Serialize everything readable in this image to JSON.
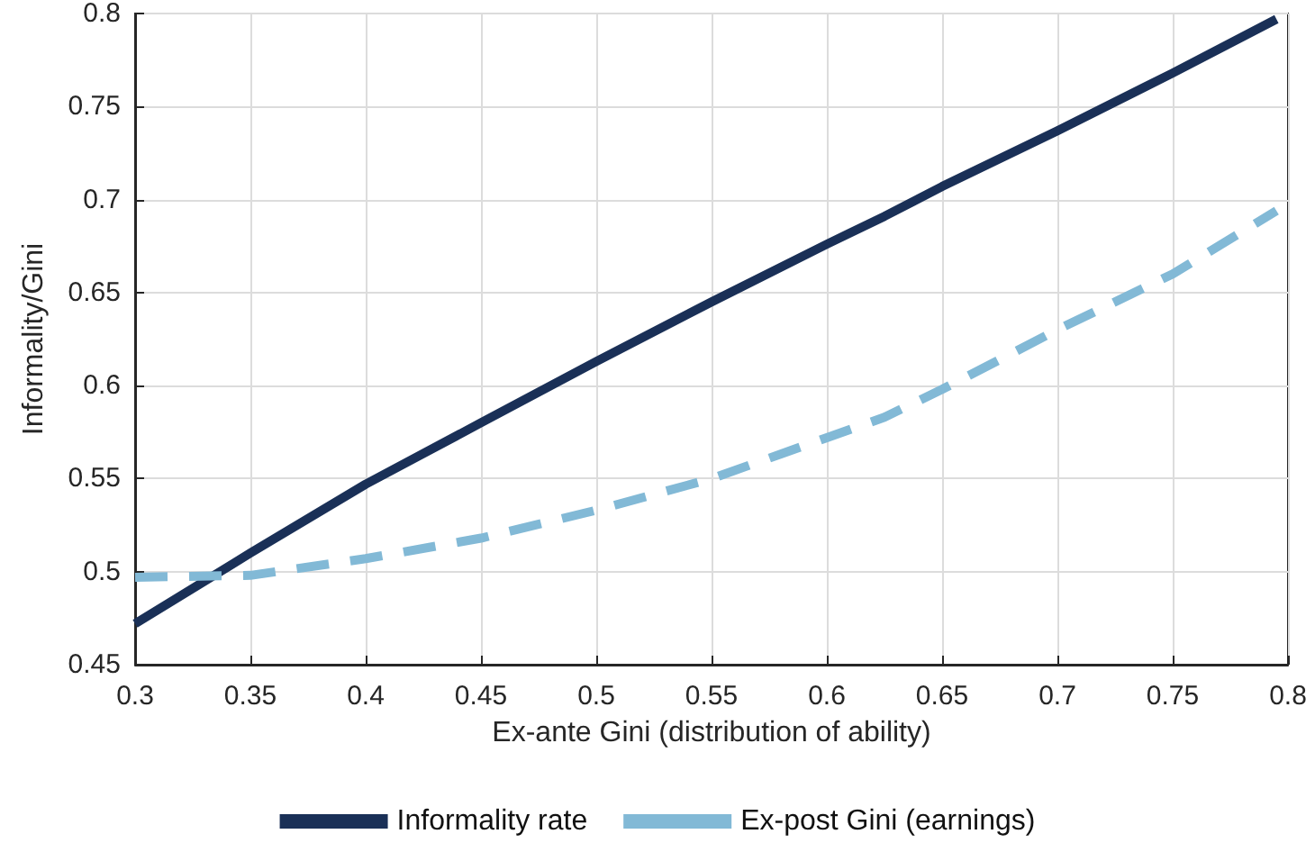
{
  "chart_data": {
    "type": "line",
    "xlabel": "Ex-ante Gini (distribution of ability)",
    "ylabel": "Informality/Gini",
    "x": [
      0.3,
      0.35,
      0.4,
      0.45,
      0.5,
      0.55,
      0.6,
      0.625,
      0.65,
      0.7,
      0.75,
      0.795
    ],
    "series": [
      {
        "name": "Informality rate",
        "color": "#1a3057",
        "line_style": "solid",
        "values": [
          0.472,
          0.51,
          0.547,
          0.58,
          0.613,
          0.645,
          0.676,
          0.691,
          0.707,
          0.737,
          0.768,
          0.797
        ]
      },
      {
        "name": "Ex-post Gini (earnings)",
        "color": "#82b9d6",
        "line_style": "dashed",
        "values": [
          0.497,
          0.498,
          0.507,
          0.518,
          0.533,
          0.55,
          0.572,
          0.583,
          0.598,
          0.63,
          0.66,
          0.694
        ]
      }
    ],
    "xlim": [
      0.3,
      0.8
    ],
    "xticks": [
      0.3,
      0.35,
      0.4,
      0.45,
      0.5,
      0.55,
      0.6,
      0.65,
      0.7,
      0.75,
      0.8
    ],
    "ylim": [
      0.45,
      0.8
    ],
    "yticks": [
      0.45,
      0.5,
      0.55,
      0.6,
      0.65,
      0.7,
      0.75,
      0.8
    ],
    "grid": true,
    "legend": "bottom",
    "marker": "none"
  }
}
